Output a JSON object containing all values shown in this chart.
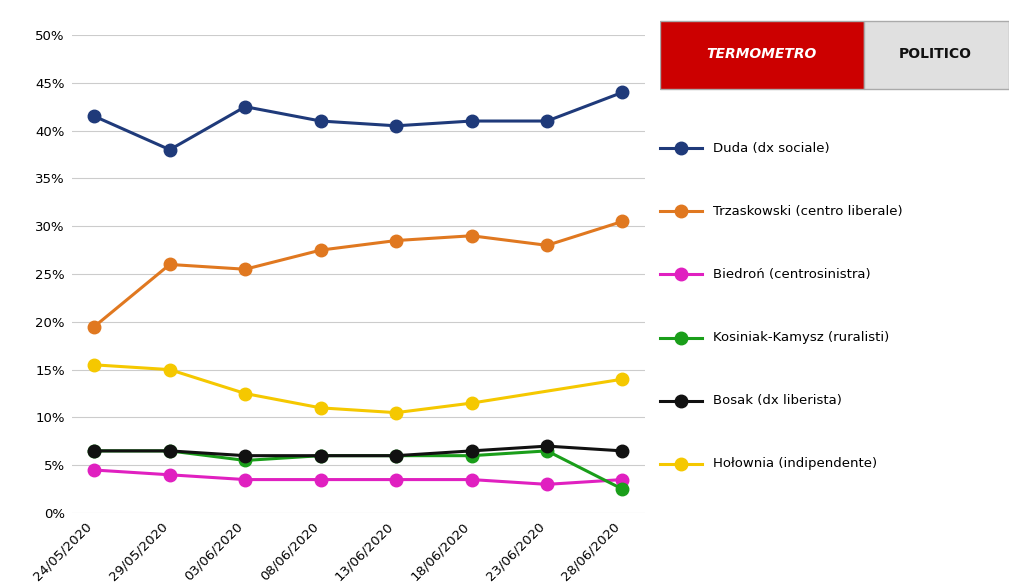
{
  "dates": [
    "24/05/2020",
    "29/05/2020",
    "03/06/2020",
    "08/06/2020",
    "13/06/2020",
    "18/06/2020",
    "23/06/2020",
    "28/06/2020"
  ],
  "series": [
    {
      "name": "Duda (dx sociale)",
      "values": [
        41.5,
        38.0,
        42.5,
        41.0,
        40.5,
        41.0,
        41.0,
        44.0
      ],
      "color": "#1f3a7a",
      "x_indices": [
        0,
        1,
        2,
        3,
        4,
        5,
        6,
        7
      ]
    },
    {
      "name": "Trzaskowski (centro liberale)",
      "values": [
        19.5,
        26.0,
        25.5,
        27.5,
        28.5,
        29.0,
        28.0,
        30.5
      ],
      "color": "#e07820",
      "x_indices": [
        0,
        1,
        2,
        3,
        4,
        5,
        6,
        7
      ]
    },
    {
      "name": "Biedrоń (centrosinistra)",
      "values": [
        4.5,
        4.0,
        3.5,
        3.5,
        3.5,
        3.5,
        3.0,
        3.5
      ],
      "color": "#e020c0",
      "x_indices": [
        0,
        1,
        2,
        3,
        4,
        5,
        6,
        7
      ]
    },
    {
      "name": "Kosiniak-Kamysz (ruralisti)",
      "values": [
        6.5,
        6.5,
        5.5,
        6.0,
        6.0,
        6.0,
        6.5,
        2.5
      ],
      "color": "#1a9e1a",
      "x_indices": [
        0,
        1,
        2,
        3,
        4,
        5,
        6,
        7
      ]
    },
    {
      "name": "Bosak (dx liberista)",
      "values": [
        6.5,
        6.5,
        6.0,
        6.0,
        6.0,
        6.5,
        7.0,
        6.5
      ],
      "color": "#111111",
      "x_indices": [
        0,
        1,
        2,
        3,
        4,
        5,
        6,
        7
      ]
    },
    {
      "name": "Hołownia (indipendente)",
      "values": [
        15.5,
        15.0,
        12.5,
        11.0,
        10.5,
        11.5,
        14.0
      ],
      "color": "#f5c800",
      "x_indices": [
        0,
        1,
        2,
        3,
        4,
        5,
        7
      ]
    }
  ],
  "ylim": [
    0,
    50
  ],
  "yticks": [
    0,
    5,
    10,
    15,
    20,
    25,
    30,
    35,
    40,
    45,
    50
  ],
  "background_color": "#ffffff",
  "grid_color": "#cccccc",
  "logo_termometro_color": "#cc0000",
  "logo_politico_bg": "#e0e0e0",
  "logo_border_color": "#aaaaaa"
}
